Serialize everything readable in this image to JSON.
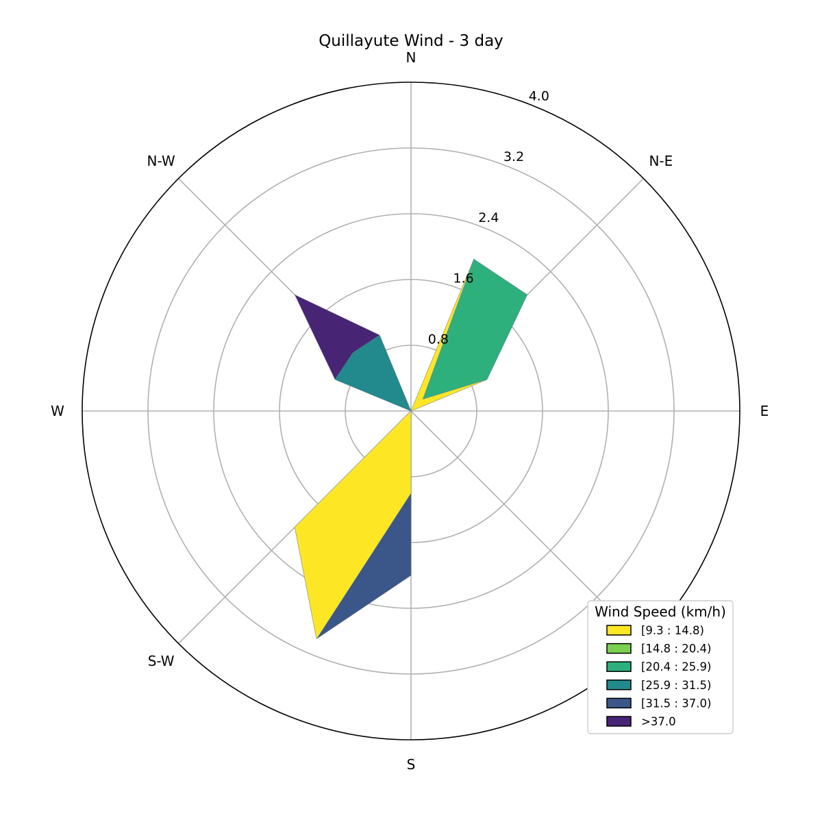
{
  "chart_data": {
    "type": "windrose",
    "title": "Quillayute Wind - 3 day",
    "directions": [
      "N",
      "N-E",
      "E",
      "S-E",
      "S",
      "S-W",
      "W",
      "N-W"
    ],
    "rlim": [
      0,
      4.0
    ],
    "radial_ticks": [
      "0.8",
      "1.6",
      "2.4",
      "3.2",
      "4.0"
    ],
    "radial_tick_values": [
      0.8,
      1.6,
      2.4,
      3.2,
      4.0
    ],
    "grid": true,
    "legend_position": "lower-right",
    "legend_title": "Wind Speed (km/h)",
    "bins": [
      "[9.3 : 14.8)",
      "[14.8 : 20.4)",
      "[20.4 : 25.9)",
      "[25.9 : 31.5)",
      "[31.5 : 37.0)",
      ">37.0"
    ],
    "colors": [
      "#fde725",
      "#7ad151",
      "#2eb07c",
      "#22898c",
      "#3b578a",
      "#482475"
    ],
    "cumulative_values": {
      "N": [
        0,
        0,
        0,
        0,
        0,
        0
      ],
      "N-E": [
        0.2,
        0.21,
        2.0,
        2.0,
        2.0,
        2.0
      ],
      "E": [
        0,
        0,
        0,
        0,
        0,
        0
      ],
      "S-E": [
        0,
        0,
        0,
        0,
        0,
        0
      ],
      "S": [
        1.0,
        1.0,
        1.0,
        1.0,
        2.0,
        2.0
      ],
      "S-W": [
        2.0,
        2.0,
        2.0,
        2.0,
        2.0,
        2.0
      ],
      "W": [
        0,
        0,
        0,
        0,
        0,
        0
      ],
      "N-W": [
        0,
        0,
        0,
        1.0,
        1.0,
        2.0
      ]
    },
    "extra_points": [
      {
        "theta": 22.5,
        "r": 2.0
      },
      {
        "theta": 67.5,
        "r": 1.0
      },
      {
        "theta": 157.5,
        "r": 0.0
      },
      {
        "theta": 202.5,
        "r": 3.0
      },
      {
        "theta": 292.5,
        "r": 1.0
      },
      {
        "theta": 337.5,
        "r": 1.0
      }
    ]
  }
}
